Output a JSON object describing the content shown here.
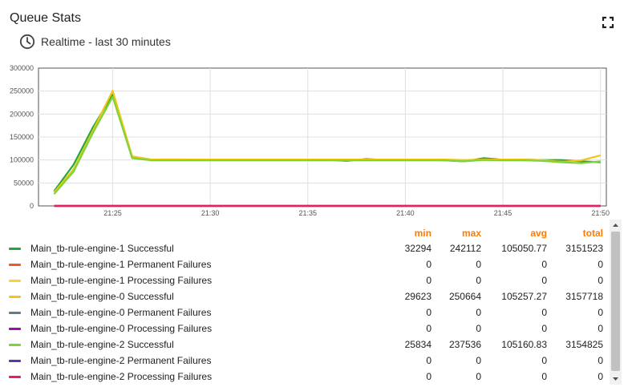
{
  "header": {
    "title": "Queue Stats",
    "timewindow": "Realtime - last 30 minutes"
  },
  "icons": {
    "fullscreen": "fullscreen-icon",
    "time": "clock-icon"
  },
  "chart_data": {
    "type": "line",
    "x": [
      "21:22",
      "21:23",
      "21:24",
      "21:25",
      "21:26",
      "21:27",
      "21:28",
      "21:29",
      "21:30",
      "21:31",
      "21:32",
      "21:33",
      "21:34",
      "21:35",
      "21:36",
      "21:37",
      "21:38",
      "21:39",
      "21:40",
      "21:41",
      "21:42",
      "21:43",
      "21:44",
      "21:45",
      "21:46",
      "21:47",
      "21:48",
      "21:49",
      "21:50"
    ],
    "x_ticks": [
      "21:25",
      "21:30",
      "21:35",
      "21:40",
      "21:45",
      "21:50"
    ],
    "y_ticks": [
      "0",
      "50000",
      "100000",
      "150000",
      "200000",
      "250000",
      "300000"
    ],
    "ylim": [
      0,
      300000
    ],
    "grid": true,
    "series": [
      {
        "name": "Main_tb-rule-engine-1 Successful",
        "color": "#22a83a",
        "values": [
          32294,
          90000,
          172000,
          242112,
          106000,
          100500,
          100000,
          100000,
          100000,
          100200,
          100000,
          100000,
          101000,
          100000,
          100000,
          98000,
          102000,
          100000,
          100000,
          100000,
          99000,
          97000,
          104000,
          100500,
          101000,
          100000,
          100000,
          97000,
          95000
        ]
      },
      {
        "name": "Main_tb-rule-engine-1 Permanent Failures",
        "color": "#f05a2a",
        "values": [
          0,
          0,
          0,
          0,
          0,
          0,
          0,
          0,
          0,
          0,
          0,
          0,
          0,
          0,
          0,
          0,
          0,
          0,
          0,
          0,
          0,
          0,
          0,
          0,
          0,
          0,
          0,
          0,
          0
        ]
      },
      {
        "name": "Main_tb-rule-engine-1 Processing Failures",
        "color": "#fcd32b",
        "values": [
          0,
          0,
          0,
          0,
          0,
          0,
          0,
          0,
          0,
          0,
          0,
          0,
          0,
          0,
          0,
          0,
          0,
          0,
          0,
          0,
          0,
          0,
          0,
          0,
          0,
          0,
          0,
          0,
          0
        ]
      },
      {
        "name": "Main_tb-rule-engine-0 Successful",
        "color": "#f3c515",
        "values": [
          29623,
          80000,
          165000,
          250664,
          108000,
          101000,
          101500,
          101000,
          101000,
          101000,
          101000,
          101000,
          101000,
          101000,
          101000,
          101000,
          101000,
          101000,
          101000,
          101000,
          101000,
          100000,
          101000,
          101000,
          101000,
          100000,
          96000,
          99000,
          110000
        ]
      },
      {
        "name": "Main_tb-rule-engine-0 Permanent Failures",
        "color": "#607d8b",
        "values": [
          0,
          0,
          0,
          0,
          0,
          0,
          0,
          0,
          0,
          0,
          0,
          0,
          0,
          0,
          0,
          0,
          0,
          0,
          0,
          0,
          0,
          0,
          0,
          0,
          0,
          0,
          0,
          0,
          0
        ]
      },
      {
        "name": "Main_tb-rule-engine-0 Processing Failures",
        "color": "#9c0fa8",
        "values": [
          0,
          0,
          0,
          0,
          0,
          0,
          0,
          0,
          0,
          0,
          0,
          0,
          0,
          0,
          0,
          0,
          0,
          0,
          0,
          0,
          0,
          0,
          0,
          0,
          0,
          0,
          0,
          0,
          0
        ]
      },
      {
        "name": "Main_tb-rule-engine-2 Successful",
        "color": "#7cd33a",
        "values": [
          25834,
          75000,
          160000,
          237536,
          104000,
          99000,
          99000,
          99000,
          99000,
          99000,
          99000,
          99000,
          99000,
          99000,
          99000,
          99000,
          99000,
          99000,
          99000,
          99000,
          99000,
          97000,
          100000,
          99000,
          99000,
          98000,
          95000,
          93000,
          97000
        ]
      },
      {
        "name": "Main_tb-rule-engine-2 Permanent Failures",
        "color": "#5e35b1",
        "values": [
          0,
          0,
          0,
          0,
          0,
          0,
          0,
          0,
          0,
          0,
          0,
          0,
          0,
          0,
          0,
          0,
          0,
          0,
          0,
          0,
          0,
          0,
          0,
          0,
          0,
          0,
          0,
          0,
          0
        ]
      },
      {
        "name": "Main_tb-rule-engine-2 Processing Failures",
        "color": "#e91e63",
        "values": [
          0,
          0,
          0,
          0,
          0,
          0,
          0,
          0,
          0,
          0,
          0,
          0,
          0,
          0,
          0,
          0,
          0,
          0,
          0,
          0,
          0,
          0,
          0,
          0,
          0,
          0,
          0,
          0,
          0
        ]
      }
    ]
  },
  "legend": {
    "headers": {
      "min": "min",
      "max": "max",
      "avg": "avg",
      "total": "total"
    },
    "rows": [
      {
        "label": "Main_tb-rule-engine-1 Successful",
        "color": "#22a83a",
        "min": "32294",
        "max": "242112",
        "avg": "105050.77",
        "total": "3151523"
      },
      {
        "label": "Main_tb-rule-engine-1 Permanent Failures",
        "color": "#f05a2a",
        "min": "0",
        "max": "0",
        "avg": "0",
        "total": "0"
      },
      {
        "label": "Main_tb-rule-engine-1 Processing Failures",
        "color": "#fcd32b",
        "min": "0",
        "max": "0",
        "avg": "0",
        "total": "0"
      },
      {
        "label": "Main_tb-rule-engine-0 Successful",
        "color": "#f3c515",
        "min": "29623",
        "max": "250664",
        "avg": "105257.27",
        "total": "3157718"
      },
      {
        "label": "Main_tb-rule-engine-0 Permanent Failures",
        "color": "#607d8b",
        "min": "0",
        "max": "0",
        "avg": "0",
        "total": "0"
      },
      {
        "label": "Main_tb-rule-engine-0 Processing Failures",
        "color": "#9c0fa8",
        "min": "0",
        "max": "0",
        "avg": "0",
        "total": "0"
      },
      {
        "label": "Main_tb-rule-engine-2 Successful",
        "color": "#7cd33a",
        "min": "25834",
        "max": "237536",
        "avg": "105160.83",
        "total": "3154825"
      },
      {
        "label": "Main_tb-rule-engine-2 Permanent Failures",
        "color": "#5e35b1",
        "min": "0",
        "max": "0",
        "avg": "0",
        "total": "0"
      },
      {
        "label": "Main_tb-rule-engine-2 Processing Failures",
        "color": "#e91e63",
        "min": "0",
        "max": "0",
        "avg": "0",
        "total": "0"
      }
    ]
  }
}
